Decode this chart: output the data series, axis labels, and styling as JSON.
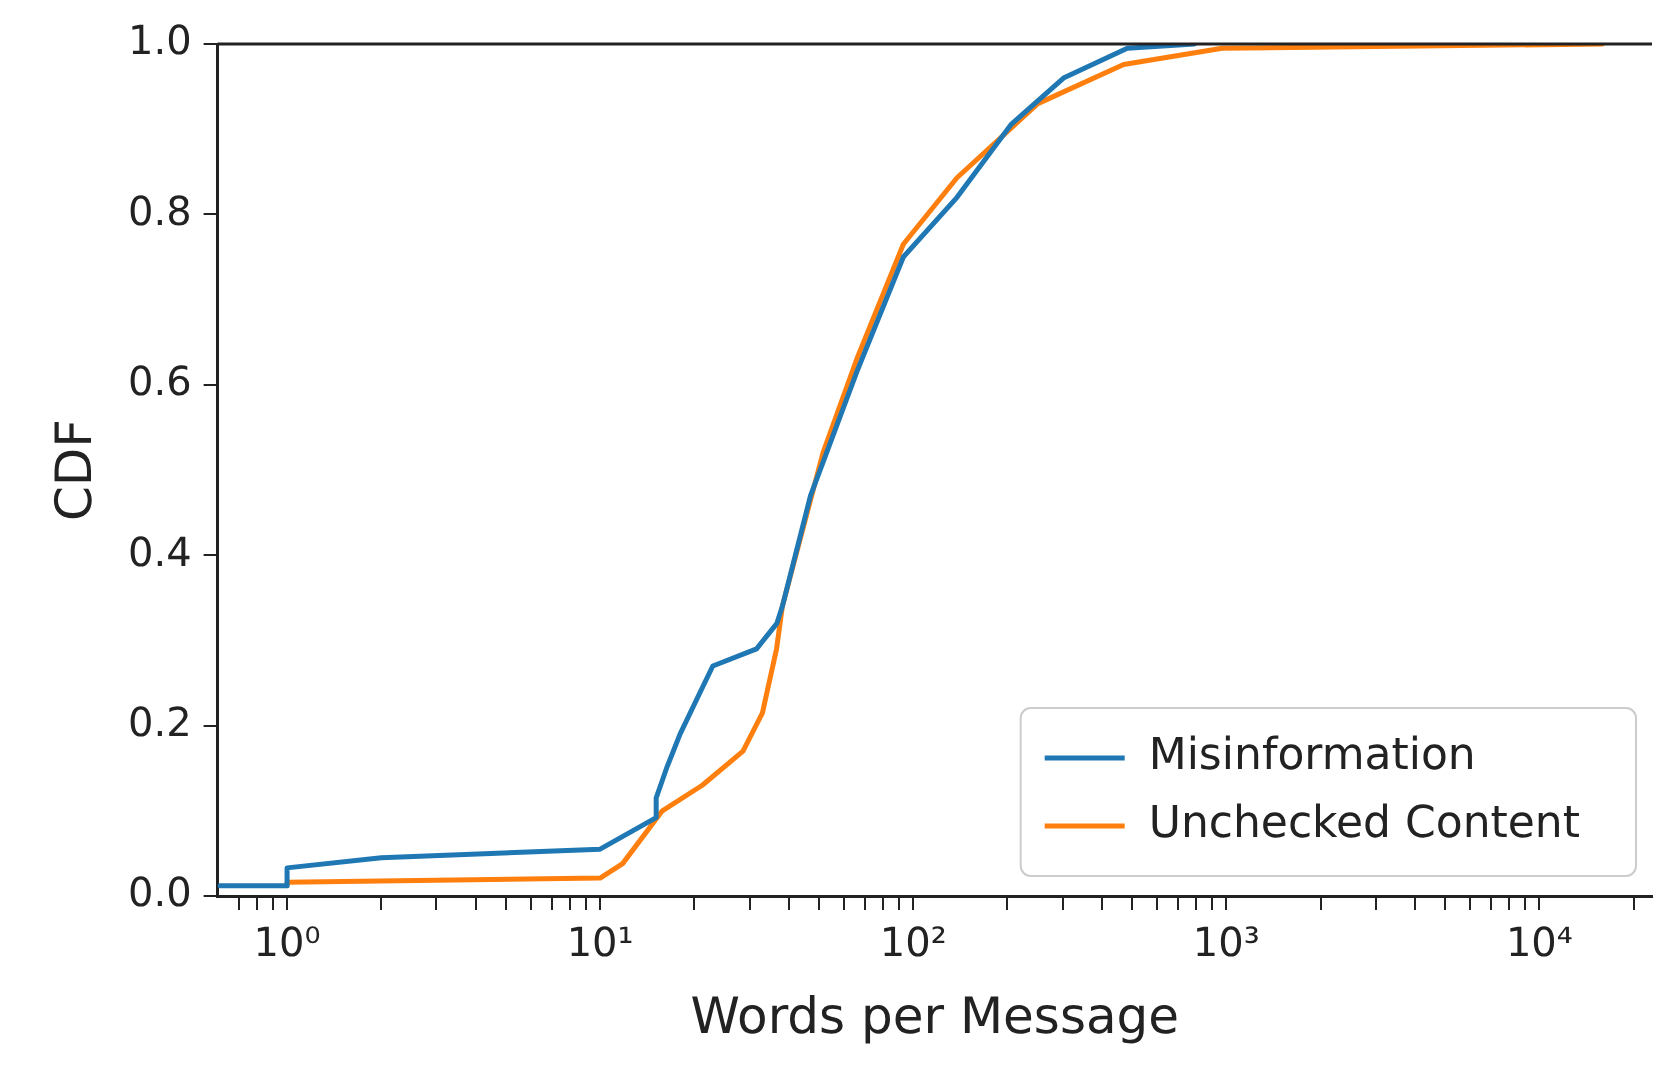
{
  "chart_data": {
    "type": "line",
    "xlabel": "Words per Message",
    "ylabel": "CDF",
    "log": "x",
    "grid": false,
    "legend": "bottom right",
    "marker": "none",
    "line_style": "solid",
    "xlim": [
      0.61,
      22900
    ],
    "xticks": [
      {
        "value": 0.7,
        "label": null
      },
      {
        "value": 0.8,
        "label": null
      },
      {
        "value": 0.9,
        "label": null
      },
      {
        "value": 1,
        "label": "10⁰"
      },
      {
        "value": 2,
        "label": null
      },
      {
        "value": 3,
        "label": null
      },
      {
        "value": 4,
        "label": null
      },
      {
        "value": 5,
        "label": null
      },
      {
        "value": 6,
        "label": null
      },
      {
        "value": 7,
        "label": null
      },
      {
        "value": 8,
        "label": null
      },
      {
        "value": 9,
        "label": null
      },
      {
        "value": 10,
        "label": "10¹"
      },
      {
        "value": 20,
        "label": null
      },
      {
        "value": 30,
        "label": null
      },
      {
        "value": 40,
        "label": null
      },
      {
        "value": 50,
        "label": null
      },
      {
        "value": 60,
        "label": null
      },
      {
        "value": 70,
        "label": null
      },
      {
        "value": 80,
        "label": null
      },
      {
        "value": 90,
        "label": null
      },
      {
        "value": 100,
        "label": "10²"
      },
      {
        "value": 200,
        "label": null
      },
      {
        "value": 300,
        "label": null
      },
      {
        "value": 400,
        "label": null
      },
      {
        "value": 500,
        "label": null
      },
      {
        "value": 600,
        "label": null
      },
      {
        "value": 700,
        "label": null
      },
      {
        "value": 800,
        "label": null
      },
      {
        "value": 900,
        "label": null
      },
      {
        "value": 1000,
        "label": "10³"
      },
      {
        "value": 2000,
        "label": null
      },
      {
        "value": 3000,
        "label": null
      },
      {
        "value": 4000,
        "label": null
      },
      {
        "value": 5000,
        "label": null
      },
      {
        "value": 6000,
        "label": null
      },
      {
        "value": 7000,
        "label": null
      },
      {
        "value": 8000,
        "label": null
      },
      {
        "value": 9000,
        "label": null
      },
      {
        "value": 10000,
        "label": "10⁴"
      },
      {
        "value": 20000,
        "label": null
      }
    ],
    "ylim": [
      0,
      1
    ],
    "yticks": [
      {
        "value": 0,
        "label": "0.0"
      },
      {
        "value": 0.2,
        "label": "0.2"
      },
      {
        "value": 0.4,
        "label": "0.4"
      },
      {
        "value": 0.6,
        "label": "0.6"
      },
      {
        "value": 0.8,
        "label": "0.8"
      },
      {
        "value": 1,
        "label": "1.0"
      }
    ],
    "series": [
      {
        "name": "Misinformation",
        "color": "#1f77b4",
        "x": [
          0.61,
          1,
          1,
          2,
          10,
          15.1,
          15.1,
          16.3,
          18,
          20.3,
          22.9,
          31.6,
          36.7,
          38.2,
          47,
          66,
          93,
          138,
          206,
          302,
          483,
          790
        ],
        "values": [
          0.012,
          0.012,
          0.033,
          0.045,
          0.055,
          0.092,
          0.115,
          0.15,
          0.19,
          0.23,
          0.27,
          0.29,
          0.32,
          0.34,
          0.47,
          0.615,
          0.75,
          0.82,
          0.906,
          0.96,
          0.995,
          1
        ]
      },
      {
        "name": "Unchecked Content",
        "color": "#ff7f0e",
        "x": [
          1,
          1,
          10,
          11.8,
          15.8,
          21.2,
          28.6,
          33,
          36.6,
          38.2,
          51.5,
          66,
          93,
          138,
          250,
          470,
          970,
          15900
        ],
        "values": [
          0.012,
          0.016,
          0.021,
          0.038,
          0.1,
          0.13,
          0.17,
          0.215,
          0.29,
          0.34,
          0.52,
          0.63,
          0.765,
          0.843,
          0.93,
          0.976,
          0.995,
          1
        ]
      }
    ]
  }
}
